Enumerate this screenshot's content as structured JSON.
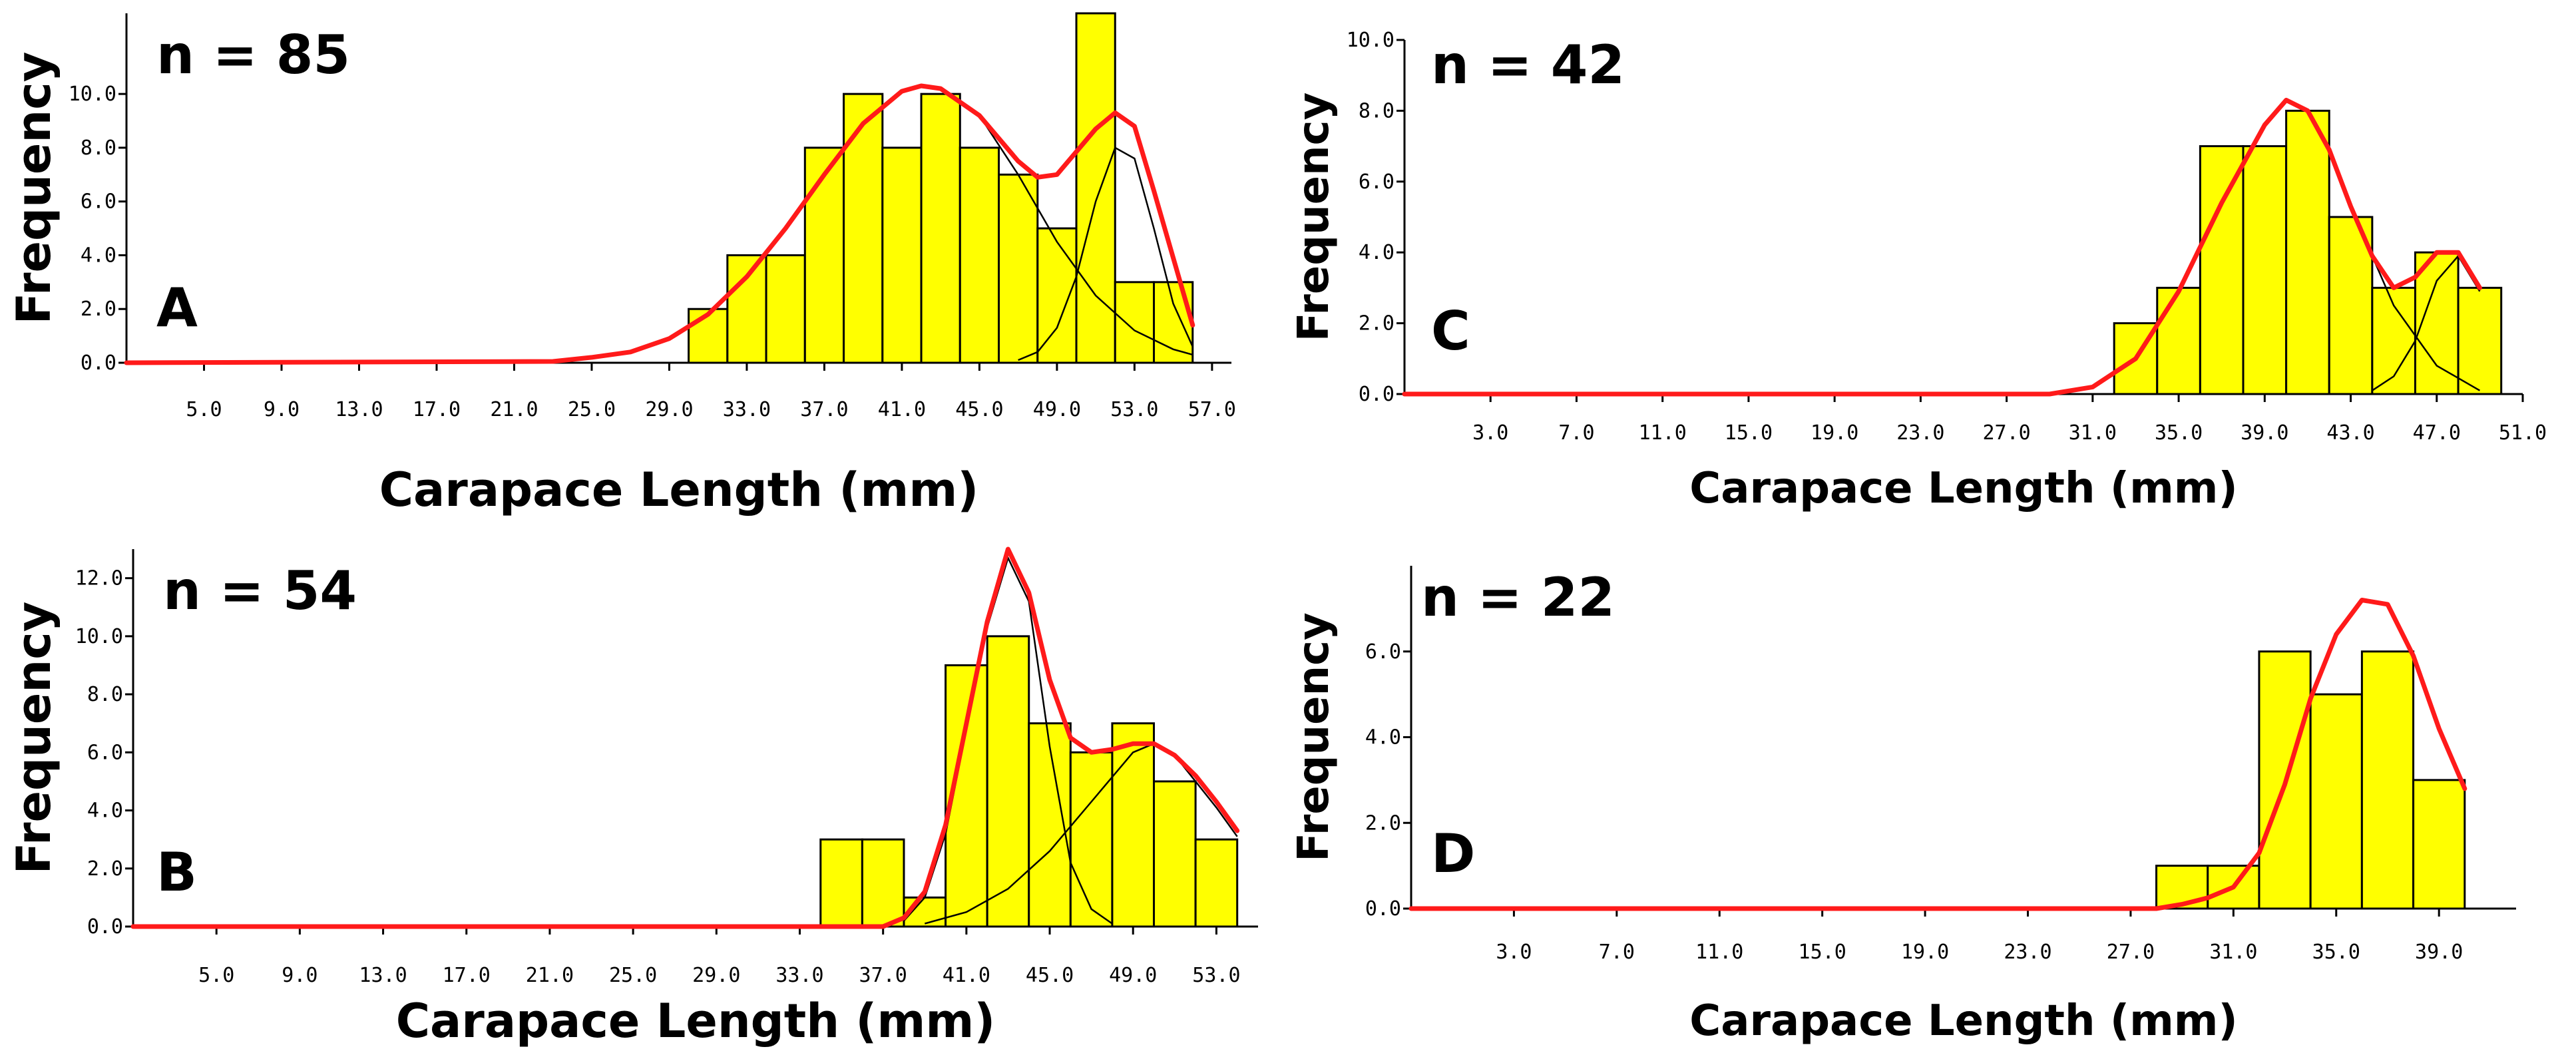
{
  "chart_data": [
    {
      "panel": "A",
      "type": "bar",
      "n_label": "n = 85",
      "xlabel": "Carapace Length (mm)",
      "ylabel": "Frequency",
      "x_ticks": [
        "5.0",
        "9.0",
        "13.0",
        "17.0",
        "21.0",
        "25.0",
        "29.0",
        "33.0",
        "37.0",
        "41.0",
        "45.0",
        "49.0",
        "53.0",
        "57.0"
      ],
      "y_ticks": [
        "0.0",
        "2.0",
        "4.0",
        "6.0",
        "8.0",
        "10.0"
      ],
      "xlim": [
        1,
        58
      ],
      "ylim": [
        0,
        13
      ],
      "bin_width": 2,
      "bins": [
        {
          "x": 31,
          "value": 2
        },
        {
          "x": 33,
          "value": 4
        },
        {
          "x": 35,
          "value": 4
        },
        {
          "x": 37,
          "value": 8
        },
        {
          "x": 39,
          "value": 10
        },
        {
          "x": 41,
          "value": 8
        },
        {
          "x": 43,
          "value": 10
        },
        {
          "x": 45,
          "value": 8
        },
        {
          "x": 47,
          "value": 7
        },
        {
          "x": 49,
          "value": 5
        },
        {
          "x": 51,
          "value": 13
        },
        {
          "x": 53,
          "value": 3
        },
        {
          "x": 55,
          "value": 3
        }
      ],
      "fit_total": {
        "x": [
          1,
          23,
          25,
          27,
          29,
          31,
          33,
          35,
          37,
          39,
          41,
          42,
          43,
          45,
          47,
          48,
          49,
          51,
          52,
          53,
          54,
          55,
          56
        ],
        "y": [
          0,
          0.05,
          0.2,
          0.4,
          0.9,
          1.8,
          3.2,
          5.0,
          7.0,
          8.9,
          10.1,
          10.3,
          10.2,
          9.2,
          7.5,
          6.9,
          7.0,
          8.7,
          9.3,
          8.8,
          6.4,
          3.9,
          1.4
        ]
      },
      "components": [
        {
          "x": [
            23,
            25,
            27,
            29,
            31,
            33,
            35,
            37,
            39,
            41,
            42,
            43,
            45,
            47,
            49,
            51,
            53,
            55,
            56
          ],
          "y": [
            0.05,
            0.2,
            0.4,
            0.9,
            1.8,
            3.2,
            5.0,
            7.0,
            8.9,
            10.1,
            10.3,
            10.2,
            9.2,
            7.0,
            4.5,
            2.5,
            1.2,
            0.5,
            0.3
          ]
        },
        {
          "x": [
            47,
            48,
            49,
            50,
            51,
            52,
            53,
            54,
            55,
            56
          ],
          "y": [
            0.1,
            0.4,
            1.3,
            3.2,
            6.0,
            8.0,
            7.6,
            5.0,
            2.2,
            0.6
          ]
        }
      ]
    },
    {
      "panel": "B",
      "type": "bar",
      "n_label": "n = 54",
      "xlabel": "Carapace Length (mm)",
      "ylabel": "Frequency",
      "x_ticks": [
        "5.0",
        "9.0",
        "13.0",
        "17.0",
        "21.0",
        "25.0",
        "29.0",
        "33.0",
        "37.0",
        "41.0",
        "45.0",
        "49.0",
        "53.0"
      ],
      "y_ticks": [
        "0.0",
        "2.0",
        "4.0",
        "6.0",
        "8.0",
        "10.0",
        "12.0"
      ],
      "xlim": [
        1,
        55
      ],
      "ylim": [
        0,
        13
      ],
      "bin_width": 2,
      "bins": [
        {
          "x": 35,
          "value": 3
        },
        {
          "x": 37,
          "value": 3
        },
        {
          "x": 39,
          "value": 1
        },
        {
          "x": 41,
          "value": 9
        },
        {
          "x": 43,
          "value": 10
        },
        {
          "x": 45,
          "value": 7
        },
        {
          "x": 47,
          "value": 6
        },
        {
          "x": 49,
          "value": 7
        },
        {
          "x": 51,
          "value": 5
        },
        {
          "x": 53,
          "value": 3
        }
      ],
      "fit_total": {
        "x": [
          1,
          37,
          38,
          39,
          40,
          41,
          42,
          43,
          44,
          45,
          46,
          47,
          48,
          49,
          50,
          51,
          52,
          53,
          54
        ],
        "y": [
          0,
          0,
          0.3,
          1.2,
          3.5,
          7.0,
          10.5,
          13.0,
          11.5,
          8.5,
          6.5,
          6.0,
          6.1,
          6.3,
          6.3,
          5.9,
          5.2,
          4.3,
          3.3
        ]
      },
      "components": [
        {
          "x": [
            38,
            39,
            40,
            41,
            42,
            43,
            44,
            45,
            46,
            47,
            48
          ],
          "y": [
            0.2,
            1.0,
            3.2,
            6.8,
            10.3,
            12.7,
            11.2,
            6.2,
            2.2,
            0.6,
            0.1
          ]
        },
        {
          "x": [
            39,
            41,
            43,
            45,
            47,
            49,
            50,
            51,
            53,
            54
          ],
          "y": [
            0.1,
            0.5,
            1.3,
            2.6,
            4.3,
            6.0,
            6.3,
            5.9,
            4.1,
            3.1
          ]
        }
      ]
    },
    {
      "panel": "C",
      "type": "bar",
      "n_label": "n = 42",
      "xlabel": "Carapace Length (mm)",
      "ylabel": "Frequency",
      "x_ticks": [
        "3.0",
        "7.0",
        "11.0",
        "15.0",
        "19.0",
        "23.0",
        "27.0",
        "31.0",
        "35.0",
        "39.0",
        "43.0",
        "47.0",
        "51.0"
      ],
      "y_ticks": [
        "0.0",
        "2.0",
        "4.0",
        "6.0",
        "8.0",
        "10.0"
      ],
      "xlim": [
        -1,
        51
      ],
      "ylim": [
        0,
        10
      ],
      "bin_width": 2,
      "bins": [
        {
          "x": 33,
          "value": 2
        },
        {
          "x": 35,
          "value": 3
        },
        {
          "x": 37,
          "value": 7
        },
        {
          "x": 39,
          "value": 7
        },
        {
          "x": 41,
          "value": 8
        },
        {
          "x": 43,
          "value": 5
        },
        {
          "x": 45,
          "value": 3
        },
        {
          "x": 47,
          "value": 4
        },
        {
          "x": 49,
          "value": 3
        }
      ],
      "fit_total": {
        "x": [
          -1,
          29,
          31,
          33,
          35,
          37,
          39,
          40,
          41,
          42,
          43,
          44,
          45,
          46,
          47,
          48,
          49
        ],
        "y": [
          0,
          0,
          0.2,
          1.0,
          2.9,
          5.4,
          7.6,
          8.3,
          8.0,
          6.9,
          5.3,
          3.9,
          3.0,
          3.3,
          4.0,
          4.0,
          3.0
        ]
      },
      "components": [
        {
          "x": [
            29,
            31,
            33,
            35,
            37,
            39,
            40,
            41,
            42,
            43,
            45,
            47,
            49
          ],
          "y": [
            0,
            0.2,
            1.0,
            2.9,
            5.4,
            7.6,
            8.3,
            8.0,
            6.9,
            5.3,
            2.5,
            0.8,
            0.1
          ]
        },
        {
          "x": [
            44,
            45,
            46,
            47,
            48,
            49
          ],
          "y": [
            0.1,
            0.5,
            1.5,
            3.2,
            3.9,
            2.9
          ]
        }
      ]
    },
    {
      "panel": "D",
      "type": "bar",
      "n_label": "n = 22",
      "xlabel": "Carapace Length (mm)",
      "ylabel": "Frequency",
      "x_ticks": [
        "3.0",
        "7.0",
        "11.0",
        "15.0",
        "19.0",
        "23.0",
        "27.0",
        "31.0",
        "35.0",
        "39.0"
      ],
      "y_ticks": [
        "0.0",
        "2.0",
        "4.0",
        "6.0"
      ],
      "xlim": [
        -1,
        42
      ],
      "ylim": [
        0,
        8
      ],
      "bin_width": 2,
      "bins": [
        {
          "x": 29,
          "value": 1
        },
        {
          "x": 31,
          "value": 1
        },
        {
          "x": 33,
          "value": 6
        },
        {
          "x": 35,
          "value": 5
        },
        {
          "x": 37,
          "value": 6
        },
        {
          "x": 39,
          "value": 3
        }
      ],
      "fit_total": {
        "x": [
          -1,
          28,
          29,
          30,
          31,
          32,
          33,
          34,
          35,
          36,
          37,
          38,
          39,
          40
        ],
        "y": [
          0,
          0,
          0.1,
          0.25,
          0.5,
          1.3,
          2.9,
          4.9,
          6.4,
          7.2,
          7.1,
          5.9,
          4.2,
          2.8
        ]
      },
      "components": []
    }
  ]
}
